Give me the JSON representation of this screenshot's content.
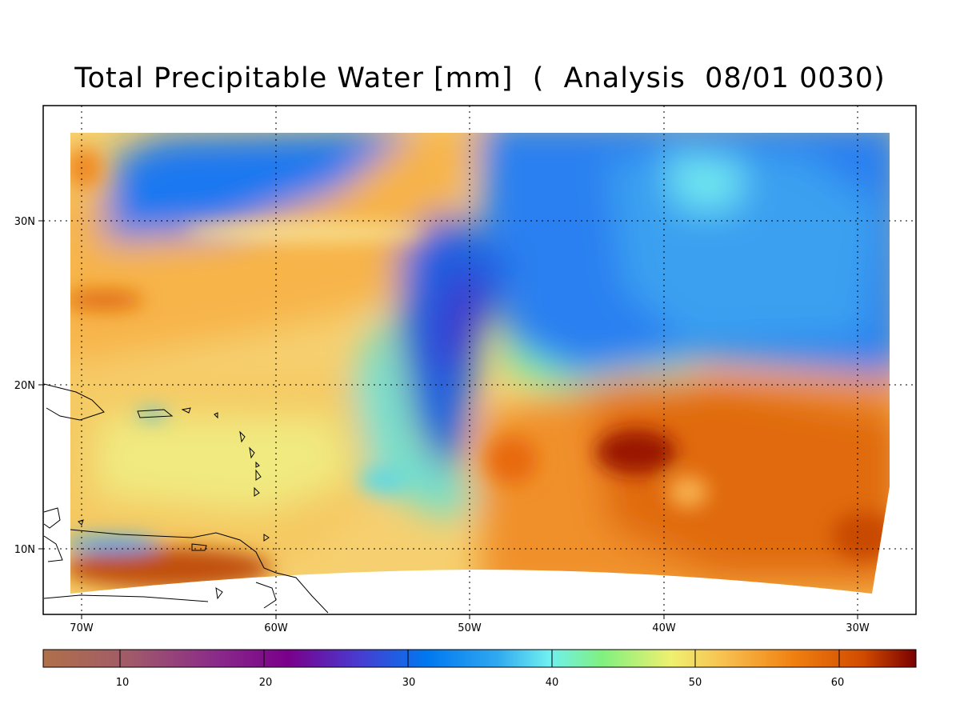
{
  "title": "Total Precipitable Water [mm]  (  Analysis  08/01 0030)",
  "map": {
    "lat_labels": [
      "30N",
      "20N",
      "10N"
    ],
    "lon_labels": [
      "70W",
      "60W",
      "50W",
      "40W",
      "30W"
    ],
    "lat_range": [
      6,
      36
    ],
    "lon_range": [
      -72,
      -27
    ]
  },
  "colorbar": {
    "tick_labels": [
      "10",
      "20",
      "30",
      "40",
      "50",
      "60"
    ],
    "range_mm": [
      5,
      65
    ],
    "colors": [
      "#b0704a",
      "#a05a6a",
      "#8a2a8a",
      "#7a008a",
      "#4a3ad0",
      "#0078f0",
      "#30a8f0",
      "#70f0f0",
      "#80f080",
      "#f0f070",
      "#f8c050",
      "#f08010",
      "#d04a00",
      "#7a0000"
    ]
  }
}
